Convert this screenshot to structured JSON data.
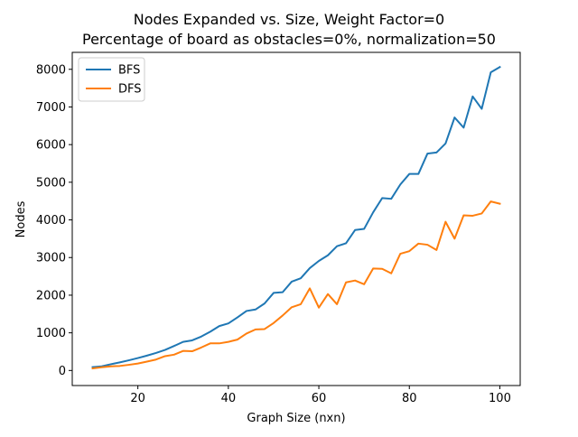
{
  "chart_data": {
    "type": "line",
    "title": "Nodes Expanded vs. Size, Weight Factor=0",
    "subtitle": "Percentage of board as obstacles=0%, normalization=50",
    "xlabel": "Graph Size (nxn)",
    "ylabel": "Nodes",
    "xlim": [
      5.5,
      104.5
    ],
    "ylim": [
      -400,
      8450
    ],
    "x_ticks": [
      20,
      40,
      60,
      80,
      100
    ],
    "y_ticks": [
      0,
      1000,
      2000,
      3000,
      4000,
      5000,
      6000,
      7000,
      8000
    ],
    "grid": false,
    "legend_position": "upper-left",
    "x": [
      10,
      12,
      14,
      16,
      18,
      20,
      22,
      24,
      26,
      28,
      30,
      32,
      34,
      36,
      38,
      40,
      42,
      44,
      46,
      48,
      50,
      52,
      54,
      56,
      58,
      60,
      62,
      64,
      66,
      68,
      70,
      72,
      74,
      76,
      78,
      80,
      82,
      84,
      86,
      88,
      90,
      92,
      94,
      96,
      98,
      100
    ],
    "series": [
      {
        "name": "BFS",
        "color": "#1f77b4",
        "values": [
          90,
          110,
          165,
          215,
          270,
          330,
          395,
          465,
          545,
          650,
          760,
          800,
          900,
          1030,
          1180,
          1250,
          1410,
          1580,
          1620,
          1780,
          2060,
          2080,
          2360,
          2450,
          2720,
          2910,
          3060,
          3300,
          3380,
          3730,
          3760,
          4200,
          4580,
          4560,
          4940,
          5220,
          5220,
          5760,
          5790,
          6030,
          6720,
          6450,
          7280,
          6950,
          7920,
          8060
        ]
      },
      {
        "name": "DFS",
        "color": "#ff7f0e",
        "values": [
          55,
          85,
          110,
          120,
          150,
          185,
          235,
          290,
          380,
          420,
          520,
          510,
          610,
          720,
          720,
          760,
          820,
          980,
          1090,
          1100,
          1260,
          1460,
          1680,
          1760,
          2180,
          1670,
          2030,
          1760,
          2340,
          2390,
          2290,
          2710,
          2700,
          2580,
          3100,
          3170,
          3370,
          3340,
          3200,
          3950,
          3500,
          4120,
          4110,
          4170,
          4490,
          4430
        ]
      }
    ]
  }
}
